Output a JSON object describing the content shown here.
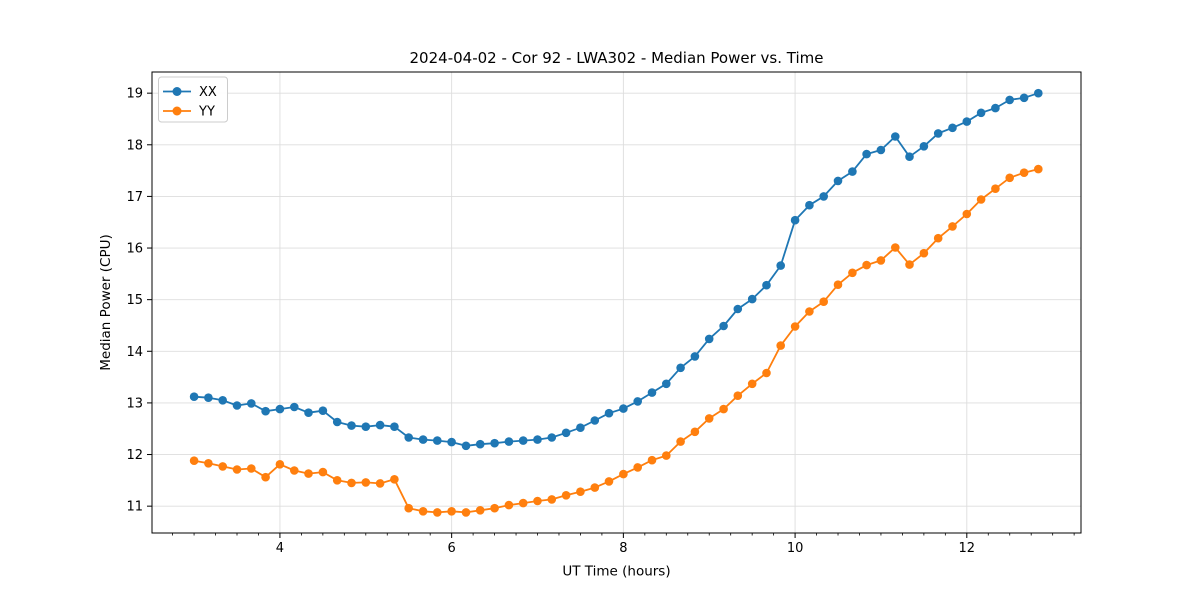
{
  "chart_data": {
    "type": "line",
    "title": "2024-04-02 - Cor 92 - LWA302 - Median Power vs. Time",
    "xlabel": "UT Time (hours)",
    "ylabel": "Median Power (CPU)",
    "xlim": [
      2.51,
      13.33
    ],
    "ylim": [
      10.48,
      19.41
    ],
    "xticks": [
      4,
      6,
      8,
      10,
      12
    ],
    "yticks": [
      11,
      12,
      13,
      14,
      15,
      16,
      17,
      18,
      19
    ],
    "x_minor_step": 0.25,
    "grid": true,
    "legend_position": "upper-left",
    "marker": "circle",
    "x": [
      3.0,
      3.167,
      3.333,
      3.5,
      3.667,
      3.833,
      4.0,
      4.167,
      4.333,
      4.5,
      4.667,
      4.833,
      5.0,
      5.167,
      5.333,
      5.5,
      5.667,
      5.833,
      6.0,
      6.167,
      6.333,
      6.5,
      6.667,
      6.833,
      7.0,
      7.167,
      7.333,
      7.5,
      7.667,
      7.833,
      8.0,
      8.167,
      8.333,
      8.5,
      8.667,
      8.833,
      9.0,
      9.167,
      9.333,
      9.5,
      9.667,
      9.833,
      10.0,
      10.167,
      10.333,
      10.5,
      10.667,
      10.833,
      11.0,
      11.167,
      11.333,
      11.5,
      11.667,
      11.833,
      12.0,
      12.167,
      12.333,
      12.5,
      12.667,
      12.833
    ],
    "series": [
      {
        "name": "XX",
        "color": "#1f77b4",
        "values": [
          13.12,
          13.1,
          13.05,
          12.95,
          12.99,
          12.84,
          12.88,
          12.92,
          12.81,
          12.85,
          12.63,
          12.56,
          12.54,
          12.57,
          12.54,
          12.33,
          12.29,
          12.27,
          12.24,
          12.17,
          12.2,
          12.22,
          12.25,
          12.27,
          12.29,
          12.33,
          12.42,
          12.52,
          12.66,
          12.8,
          12.89,
          13.03,
          13.2,
          13.37,
          13.68,
          13.9,
          14.24,
          14.49,
          14.82,
          15.01,
          15.28,
          15.66,
          16.54,
          16.83,
          17.0,
          17.3,
          17.48,
          17.82,
          17.9,
          18.16,
          17.77,
          17.97,
          18.22,
          18.33,
          18.45,
          18.62,
          18.71,
          18.87,
          18.91,
          19.0
        ]
      },
      {
        "name": "YY",
        "color": "#ff7f0e",
        "values": [
          11.88,
          11.83,
          11.77,
          11.71,
          11.73,
          11.56,
          11.81,
          11.69,
          11.63,
          11.66,
          11.5,
          11.45,
          11.46,
          11.44,
          11.52,
          10.96,
          10.9,
          10.88,
          10.9,
          10.88,
          10.92,
          10.96,
          11.02,
          11.06,
          11.1,
          11.13,
          11.21,
          11.28,
          11.36,
          11.48,
          11.62,
          11.75,
          11.89,
          11.98,
          12.25,
          12.44,
          12.7,
          12.88,
          13.14,
          13.37,
          13.58,
          14.11,
          14.48,
          14.77,
          14.96,
          15.29,
          15.52,
          15.67,
          15.76,
          16.01,
          15.68,
          15.9,
          16.19,
          16.42,
          16.66,
          16.94,
          17.15,
          17.36,
          17.46,
          17.53
        ]
      }
    ]
  },
  "colors": {
    "background": "#ffffff",
    "grid": "#dddddd",
    "spine": "#000000",
    "tick": "#000000",
    "legend_border": "#cccccc",
    "legend_fill": "#ffffff"
  }
}
